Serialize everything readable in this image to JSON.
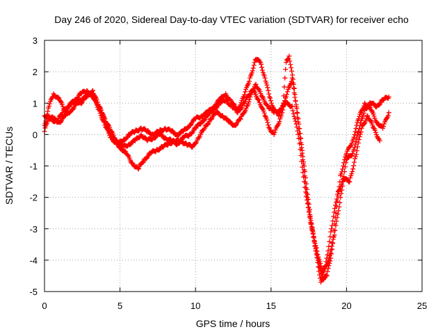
{
  "chart_data": {
    "type": "scatter",
    "title": "Day 246 of 2020, Sidereal Day-to-day VTEC variation (SDTVAR) for receiver echo",
    "xlabel": "GPS time / hours",
    "ylabel": "SDTVAR / TECUs",
    "xlim": [
      0,
      25
    ],
    "ylim": [
      -5,
      3
    ],
    "xticks": [
      "0",
      "5",
      "10",
      "15",
      "20",
      "25"
    ],
    "yticks": [
      "3",
      "2",
      "1",
      "0",
      "-1",
      "-2",
      "-3",
      "-4",
      "-5"
    ],
    "grid": true,
    "marker": "plus",
    "color": "#ff0000",
    "series": [
      {
        "x": [
          0.0,
          0.3,
          0.6,
          1.0,
          1.3,
          1.6,
          2.0,
          2.4,
          2.8,
          3.2,
          3.6,
          4.0,
          4.4,
          4.8,
          5.2,
          5.6,
          6.0,
          6.4,
          6.8,
          7.2,
          7.6,
          8.0,
          8.4,
          8.8,
          9.2,
          9.6,
          10.0,
          10.4,
          10.8,
          11.2,
          11.6,
          12.0,
          12.4,
          12.8,
          13.2,
          13.6,
          14.0,
          14.3,
          14.6,
          14.9,
          15.2,
          15.5,
          15.8,
          16.0,
          16.2,
          16.5,
          16.8,
          17.1,
          17.4,
          17.7,
          18.0,
          18.2,
          18.4,
          18.7,
          19.0,
          19.3,
          19.6,
          20.0,
          20.4,
          20.8,
          21.2,
          21.6,
          22.0,
          22.4,
          22.8
        ],
        "y": [
          0.3,
          0.9,
          1.3,
          1.1,
          0.8,
          0.9,
          1.1,
          1.3,
          1.4,
          1.2,
          0.8,
          0.3,
          -0.1,
          -0.3,
          -0.2,
          0.0,
          0.1,
          0.2,
          0.1,
          0.0,
          0.1,
          0.2,
          0.1,
          0.0,
          0.1,
          0.3,
          0.5,
          0.6,
          0.7,
          0.9,
          1.1,
          1.3,
          1.0,
          0.8,
          1.2,
          1.8,
          2.4,
          2.3,
          1.8,
          1.2,
          0.8,
          0.6,
          1.0,
          2.3,
          2.5,
          1.6,
          0.4,
          -0.8,
          -2.0,
          -3.0,
          -3.7,
          -4.2,
          -4.6,
          -4.5,
          -3.8,
          -2.5,
          -1.3,
          -0.6,
          -0.2,
          0.5,
          1.0,
          0.8,
          0.4,
          0.2,
          0.7
        ]
      },
      {
        "x": [
          0.0,
          0.3,
          0.6,
          1.0,
          1.4,
          1.8,
          2.2,
          2.6,
          3.0,
          3.4,
          3.8,
          4.2,
          4.6,
          5.0,
          5.4,
          5.8,
          6.2,
          6.6,
          7.0,
          7.4,
          7.8,
          8.2,
          8.6,
          9.0,
          9.4,
          9.8,
          10.2,
          10.6,
          11.0,
          11.4,
          11.8,
          12.2,
          12.6,
          13.0,
          13.4,
          13.8,
          14.2,
          14.6,
          14.9,
          15.2,
          15.6,
          16.0,
          16.4,
          16.8,
          17.2,
          17.6,
          18.0,
          18.3,
          18.6,
          19.0,
          19.4,
          19.8,
          20.2,
          20.6,
          21.0,
          21.4,
          21.8,
          22.2
        ],
        "y": [
          0.1,
          0.6,
          0.5,
          0.4,
          0.6,
          0.8,
          1.0,
          1.2,
          1.3,
          1.1,
          0.7,
          0.2,
          -0.2,
          -0.4,
          -0.6,
          -0.9,
          -1.1,
          -0.8,
          -0.6,
          -0.5,
          -0.4,
          -0.3,
          -0.2,
          -0.2,
          -0.3,
          -0.4,
          -0.1,
          0.2,
          0.5,
          0.7,
          0.6,
          0.4,
          0.3,
          0.5,
          0.9,
          1.4,
          1.1,
          0.6,
          0.2,
          0.0,
          0.5,
          1.2,
          1.8,
          0.5,
          -1.0,
          -2.6,
          -3.8,
          -4.7,
          -4.2,
          -3.0,
          -1.9,
          -1.4,
          -1.5,
          -0.7,
          0.2,
          0.6,
          0.2,
          -0.2
        ]
      },
      {
        "x": [
          0.0,
          0.4,
          0.8,
          1.2,
          1.6,
          2.0,
          2.4,
          2.8,
          3.2,
          3.6,
          4.0,
          4.4,
          4.8,
          5.2,
          5.6,
          6.0,
          6.4,
          6.8,
          7.2,
          7.6,
          8.0,
          8.4,
          8.8,
          9.2,
          9.6,
          10.0,
          10.4,
          10.8,
          11.2,
          11.6,
          12.0,
          12.4,
          12.8,
          13.2,
          13.6,
          14.0,
          14.4,
          14.8,
          15.2,
          15.6,
          16.0,
          16.4,
          16.8,
          17.2,
          17.6,
          18.0,
          18.4,
          18.8,
          19.2,
          19.6,
          20.0,
          20.4,
          20.8,
          21.2,
          21.6,
          22.0,
          22.4,
          22.8
        ],
        "y": [
          0.6,
          0.5,
          0.4,
          0.7,
          0.9,
          1.1,
          1.0,
          1.2,
          1.4,
          0.9,
          0.5,
          0.1,
          -0.2,
          -0.4,
          -0.3,
          -0.2,
          0.0,
          -0.2,
          -0.1,
          0.0,
          -0.1,
          -0.2,
          -0.3,
          -0.1,
          0.0,
          0.2,
          0.4,
          0.6,
          0.8,
          1.0,
          1.1,
          0.9,
          0.7,
          1.0,
          1.3,
          1.6,
          1.2,
          0.9,
          0.7,
          0.8,
          1.0,
          0.9,
          0.0,
          -1.5,
          -2.8,
          -3.6,
          -4.4,
          -4.0,
          -3.2,
          -2.0,
          -0.8,
          -0.6,
          0.1,
          0.8,
          1.0,
          0.9,
          1.1,
          1.2
        ]
      }
    ]
  }
}
